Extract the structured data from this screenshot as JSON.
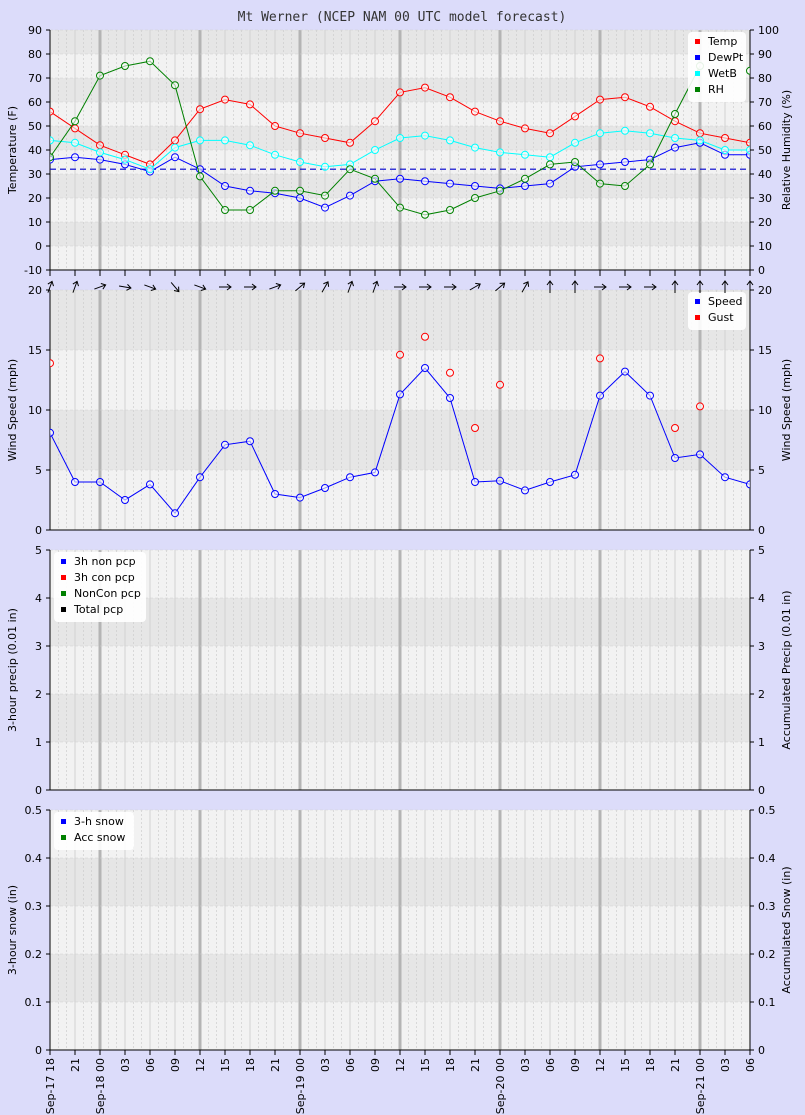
{
  "title": "Mt Werner (NCEP NAM 00 UTC model forecast)",
  "x_time_labels": [
    "Sep-17 18",
    "21",
    "Sep-18 00",
    "03",
    "06",
    "09",
    "12",
    "15",
    "18",
    "21",
    "Sep-19 00",
    "03",
    "06",
    "09",
    "12",
    "15",
    "18",
    "21",
    "Sep-20 00",
    "03",
    "06",
    "09",
    "12",
    "15",
    "18",
    "21",
    "Sep-21 00",
    "03",
    "06"
  ],
  "colors": {
    "temp": "#ff0000",
    "dewpt": "#0000ff",
    "wetb": "#00ffff",
    "rh": "#008000",
    "speed": "#0000ff",
    "gust": "#ff0000",
    "non_pcp": "#0000ff",
    "con_pcp": "#ff0000",
    "noncon_pcp": "#008000",
    "total_pcp": "#000000",
    "snow3h": "#0000ff",
    "snowacc": "#008000",
    "ref_line": "#0000cc"
  },
  "wind_direction_arrows_deg": [
    20,
    20,
    70,
    100,
    110,
    140,
    110,
    90,
    90,
    70,
    50,
    30,
    20,
    20,
    90,
    90,
    90,
    60,
    50,
    30,
    0,
    0,
    90,
    90,
    90,
    0,
    0,
    0,
    0
  ],
  "chart_data": [
    {
      "type": "line",
      "name": "temperature",
      "ylabel": "Temperature (F)",
      "y2label": "Relative Humidity (%)",
      "ylim": [
        -10,
        90
      ],
      "y2lim": [
        0,
        100
      ],
      "yticks": [
        -10,
        0,
        10,
        20,
        30,
        40,
        50,
        60,
        70,
        80,
        90
      ],
      "y2ticks": [
        0,
        10,
        20,
        30,
        40,
        50,
        60,
        70,
        80,
        90,
        100
      ],
      "ref_line_y": 32,
      "grid": true,
      "legend": "top-right",
      "series": [
        {
          "name": "Temp",
          "axis": "left",
          "values": [
            56,
            49,
            42,
            38,
            34,
            44,
            57,
            61,
            59,
            50,
            47,
            45,
            43,
            52,
            64,
            66,
            62,
            56,
            52,
            49,
            47,
            54,
            61,
            62,
            58,
            52,
            47,
            45,
            43
          ]
        },
        {
          "name": "DewPt",
          "axis": "left",
          "values": [
            36,
            37,
            36,
            34,
            31,
            37,
            32,
            25,
            23,
            22,
            20,
            16,
            21,
            27,
            28,
            27,
            26,
            25,
            24,
            25,
            26,
            33,
            34,
            35,
            36,
            41,
            43,
            38,
            38
          ]
        },
        {
          "name": "WetB",
          "axis": "left",
          "values": [
            44,
            43,
            39,
            36,
            32,
            41,
            44,
            44,
            42,
            38,
            35,
            33,
            34,
            40,
            45,
            46,
            44,
            41,
            39,
            38,
            37,
            43,
            47,
            48,
            47,
            45,
            44,
            40,
            40
          ]
        },
        {
          "name": "RH",
          "axis": "right",
          "values": [
            47,
            62,
            81,
            85,
            87,
            77,
            39,
            25,
            25,
            33,
            33,
            31,
            42,
            38,
            26,
            23,
            25,
            30,
            33,
            38,
            44,
            45,
            36,
            35,
            44,
            65,
            85,
            null,
            83
          ]
        }
      ]
    },
    {
      "type": "line",
      "name": "wind",
      "ylabel": "Wind Speed (mph)",
      "y2label": "Wind Speed (mph)",
      "ylim": [
        0,
        20
      ],
      "yticks": [
        0,
        5,
        10,
        15,
        20
      ],
      "grid": true,
      "legend": "top-right",
      "series": [
        {
          "name": "Speed",
          "values": [
            8.1,
            4.0,
            4.0,
            2.5,
            3.8,
            1.4,
            4.4,
            7.1,
            7.4,
            3.0,
            2.7,
            3.5,
            4.4,
            4.8,
            11.3,
            13.5,
            11.0,
            4.0,
            4.1,
            3.3,
            4.0,
            4.6,
            11.2,
            13.2,
            11.2,
            6.0,
            6.3,
            4.4,
            3.8
          ]
        },
        {
          "name": "Gust",
          "marker_only": true,
          "values": [
            13.9,
            null,
            null,
            null,
            null,
            null,
            null,
            null,
            null,
            null,
            null,
            null,
            null,
            null,
            14.6,
            16.1,
            13.1,
            8.5,
            12.1,
            null,
            null,
            null,
            14.3,
            null,
            null,
            8.5,
            10.3,
            null,
            null
          ]
        }
      ]
    },
    {
      "type": "line",
      "name": "precip",
      "ylabel": "3-hour precip (0.01 in)",
      "y2label": "Accumulated Precip (0.01 in)",
      "ylim": [
        0,
        5
      ],
      "yticks": [
        0,
        1,
        2,
        3,
        4,
        5
      ],
      "grid": true,
      "legend": "top-left",
      "series": [
        {
          "name": "3h non pcp",
          "values": []
        },
        {
          "name": "3h con pcp",
          "values": []
        },
        {
          "name": "NonCon pcp",
          "values": []
        },
        {
          "name": "Total pcp",
          "values": []
        }
      ]
    },
    {
      "type": "line",
      "name": "snow",
      "ylabel": "3-hour snow (in)",
      "y2label": "Accumulated Snow (in)",
      "ylim": [
        0,
        0.5
      ],
      "yticks": [
        0,
        0.1,
        0.2,
        0.3,
        0.4,
        0.5
      ],
      "grid": true,
      "legend": "top-left",
      "series": [
        {
          "name": "3-h snow",
          "values": []
        },
        {
          "name": "Acc snow",
          "values": []
        }
      ]
    }
  ]
}
